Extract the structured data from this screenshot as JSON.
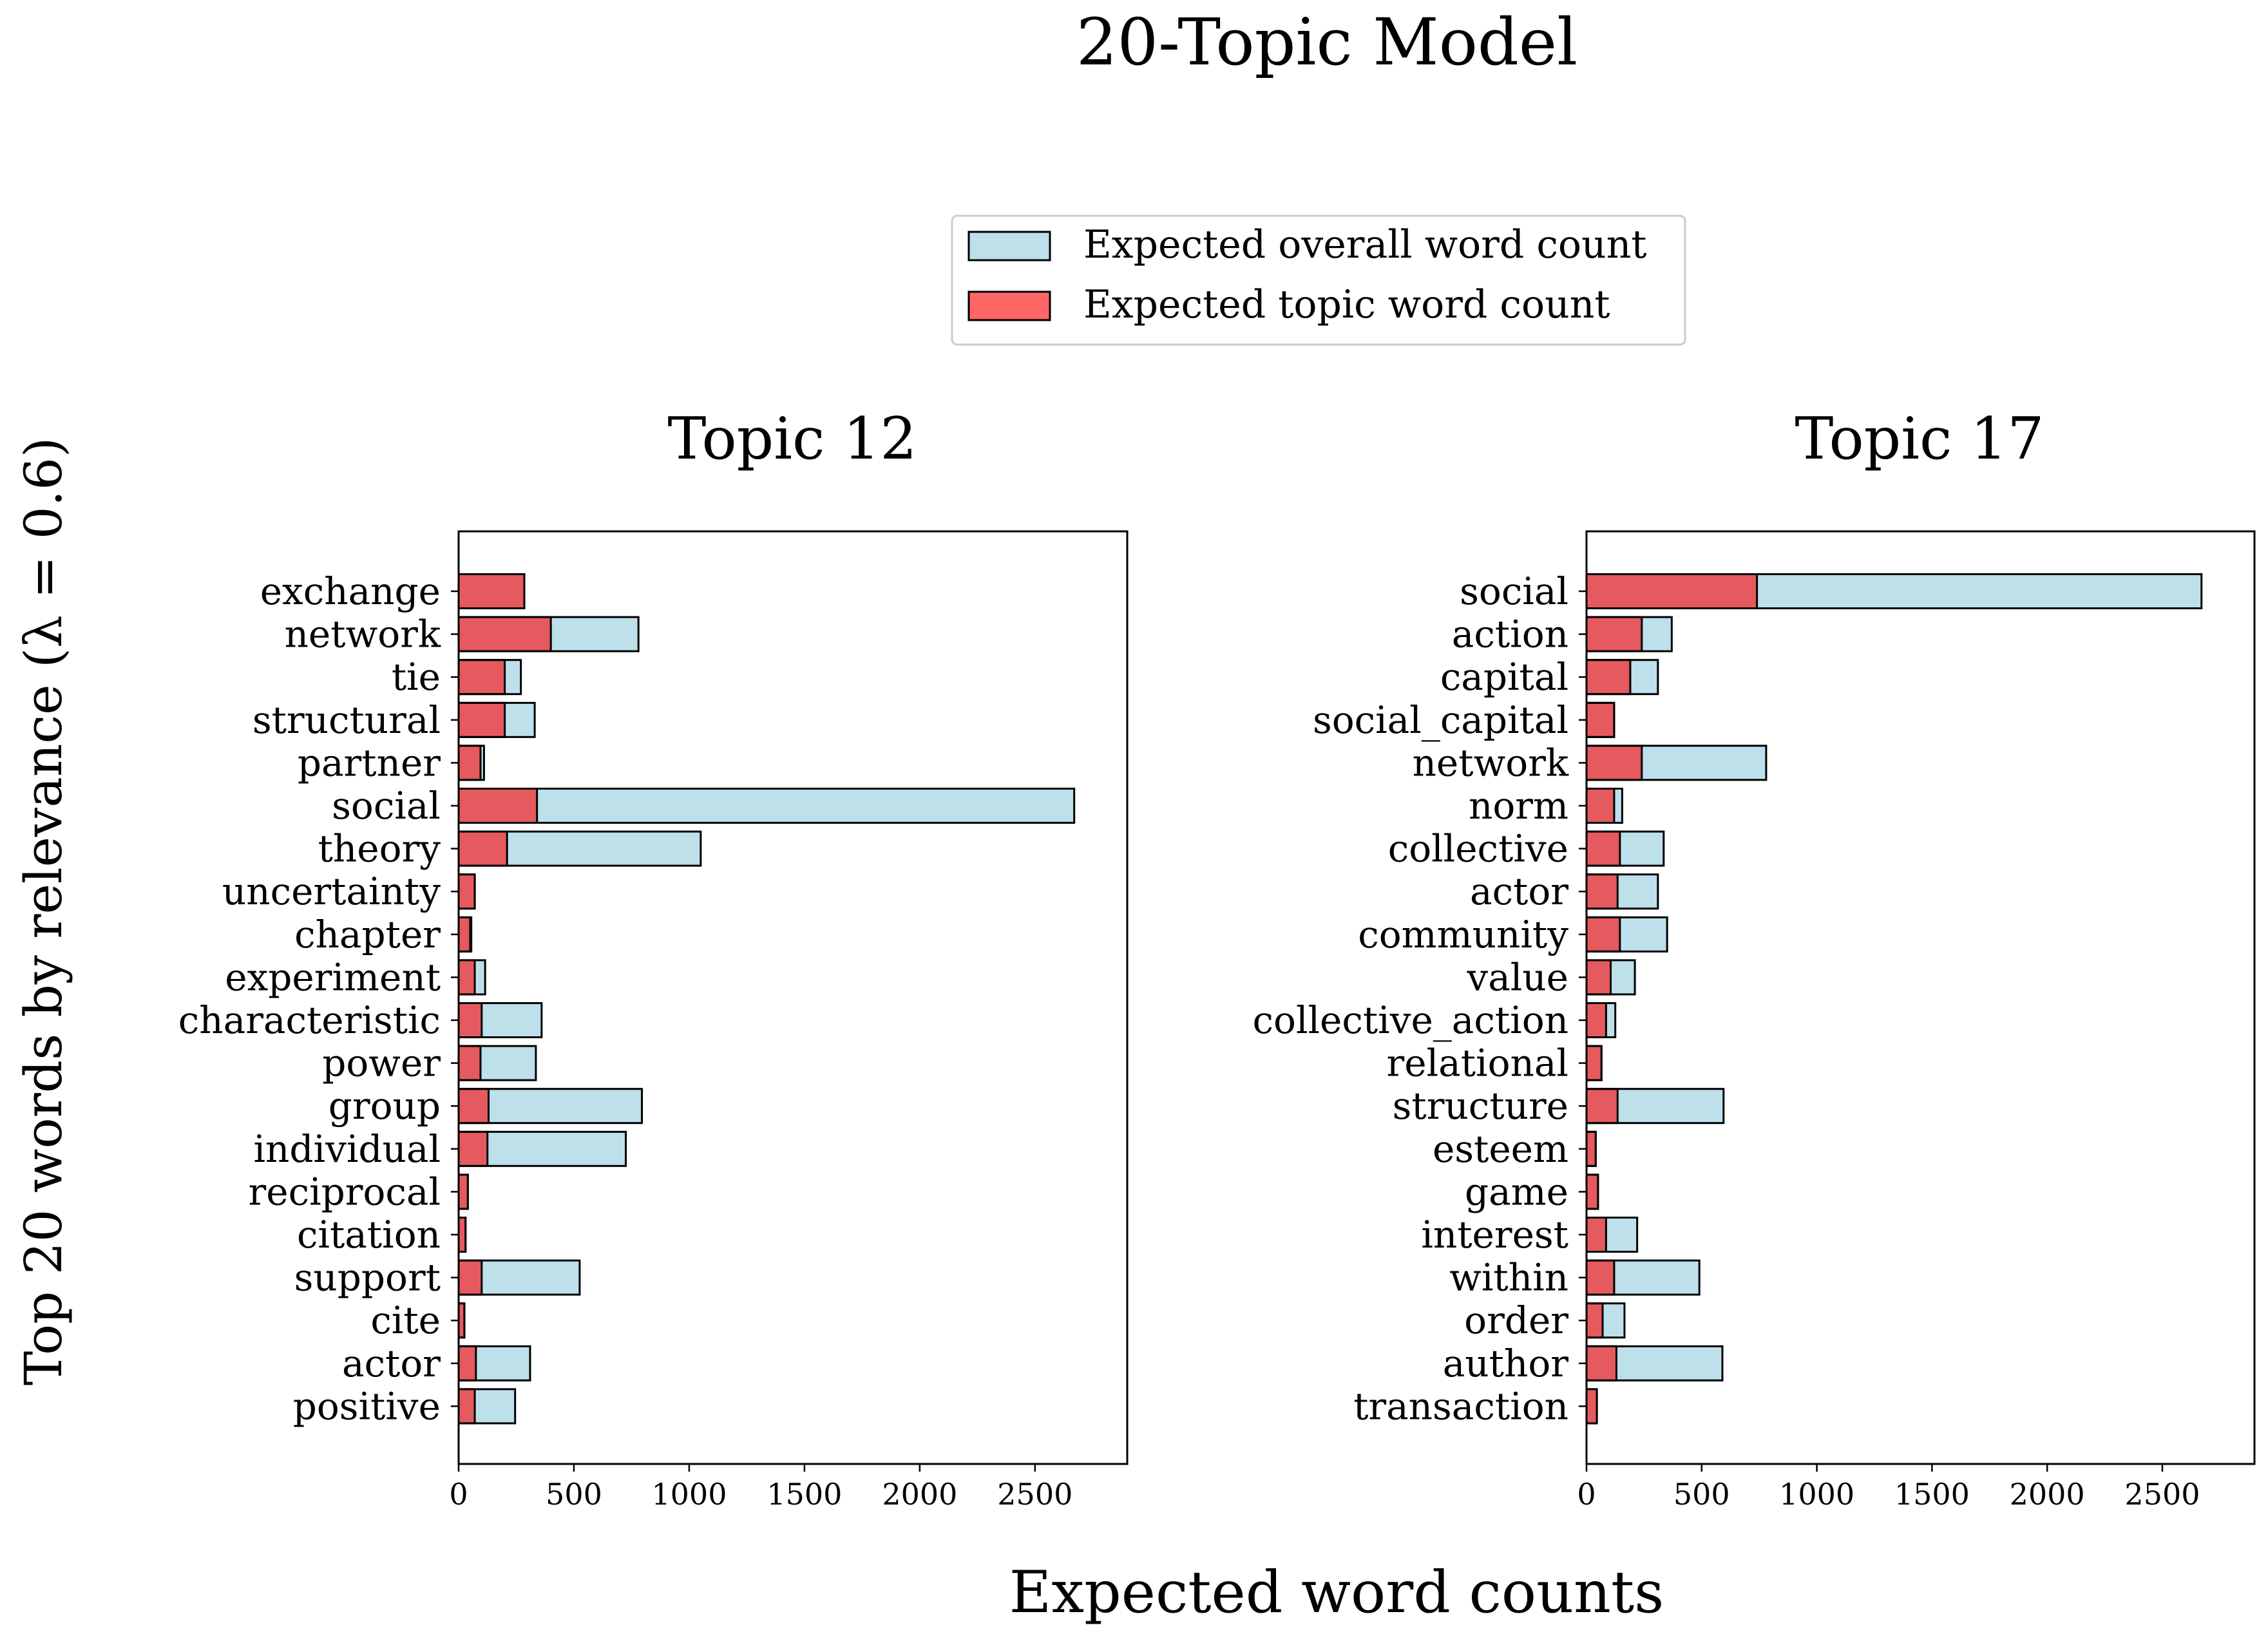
{
  "suptitle": "20-Topic Model",
  "ylabel": "Top 20 words by relevance (λ = 0.6)",
  "xlabel": "Expected word counts",
  "legend": {
    "placement": "top-center",
    "entries": [
      {
        "label": "Expected overall word count",
        "color": "#add8e6"
      },
      {
        "label": "Expected topic word count",
        "color": "#ff0000"
      }
    ]
  },
  "colors": {
    "overall": "#add8e6",
    "topic": "#ff0000",
    "edge": "#000000"
  },
  "chart_data": [
    {
      "type": "bar",
      "orientation": "horizontal",
      "title": "Topic 12",
      "xlim": [
        0,
        2900
      ],
      "xticks": [
        0,
        500,
        1000,
        1500,
        2000,
        2500
      ],
      "categories": [
        "exchange",
        "network",
        "tie",
        "structural",
        "partner",
        "social",
        "theory",
        "uncertainty",
        "chapter",
        "experiment",
        "characteristic",
        "power",
        "group",
        "individual",
        "reciprocal",
        "citation",
        "support",
        "cite",
        "actor",
        "positive"
      ],
      "series": [
        {
          "name": "Expected overall word count",
          "values": [
            285,
            780,
            270,
            330,
            110,
            2670,
            1050,
            70,
            55,
            115,
            360,
            335,
            795,
            725,
            40,
            30,
            525,
            25,
            310,
            245
          ]
        },
        {
          "name": "Expected topic word count",
          "values": [
            285,
            400,
            200,
            200,
            95,
            340,
            210,
            70,
            50,
            70,
            100,
            95,
            130,
            125,
            40,
            30,
            100,
            25,
            75,
            70
          ]
        }
      ]
    },
    {
      "type": "bar",
      "orientation": "horizontal",
      "title": "Topic 17",
      "xlim": [
        0,
        2900
      ],
      "xticks": [
        0,
        500,
        1000,
        1500,
        2000,
        2500
      ],
      "categories": [
        "social",
        "action",
        "capital",
        "social_capital",
        "network",
        "norm",
        "collective",
        "actor",
        "community",
        "value",
        "collective_action",
        "relational",
        "structure",
        "esteem",
        "game",
        "interest",
        "within",
        "order",
        "author",
        "transaction"
      ],
      "series": [
        {
          "name": "Expected overall word count",
          "values": [
            2670,
            370,
            310,
            120,
            780,
            155,
            335,
            310,
            350,
            210,
            125,
            65,
            595,
            40,
            50,
            220,
            490,
            165,
            590,
            45
          ]
        },
        {
          "name": "Expected topic word count",
          "values": [
            740,
            240,
            190,
            120,
            240,
            120,
            145,
            135,
            145,
            105,
            85,
            65,
            135,
            40,
            50,
            85,
            120,
            70,
            130,
            45
          ]
        }
      ]
    }
  ]
}
